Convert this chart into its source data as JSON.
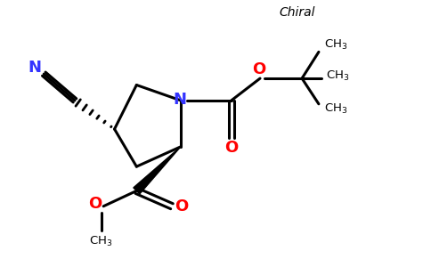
{
  "background_color": "#ffffff",
  "bond_color": "#000000",
  "N_color": "#3333ff",
  "O_color": "#ff0000",
  "text_color": "#000000",
  "figsize": [
    4.84,
    3.0
  ],
  "dpi": 100,
  "xlim": [
    0,
    9.68
  ],
  "ylim": [
    0,
    6.0
  ]
}
